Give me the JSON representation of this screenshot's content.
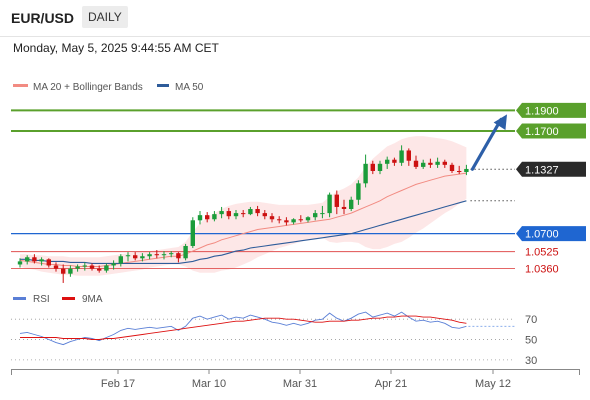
{
  "header": {
    "symbol": "EUR/USD",
    "timeframe": "DAILY",
    "datetime": "Monday, May 5, 2025 9:44:55 AM CET"
  },
  "legend_price": {
    "bb_label": "MA 20 + Bollinger Bands",
    "ma50_label": "MA 50",
    "bb_color": "#f28b82",
    "ma50_color": "#2e5c9a"
  },
  "legend_rsi": {
    "rsi_label": "RSI",
    "ma9_label": "9MA",
    "rsi_color": "#5a7fd6",
    "ma9_color": "#dd1111"
  },
  "colors": {
    "up": "#1a9c3a",
    "down": "#cc1111",
    "support": "#1f66d1",
    "resistance": "#5aa02c",
    "red_level": "#e05050"
  },
  "chart_data": {
    "type": "candlestick",
    "x_labels": [
      "Feb 17",
      "Mar 10",
      "Mar 31",
      "Apr 21",
      "May 12"
    ],
    "ylim": [
      1.02,
      1.205
    ],
    "current_price": 1.1327,
    "levels": [
      {
        "label": "1.1900",
        "value": 1.19,
        "kind": "resistance"
      },
      {
        "label": "1.1700",
        "value": 1.17,
        "kind": "resistance"
      },
      {
        "label": "1.1327",
        "value": 1.1327,
        "kind": "current"
      },
      {
        "label": "1.0700",
        "value": 1.07,
        "kind": "support"
      },
      {
        "label": "1.0525",
        "value": 1.0525,
        "kind": "red"
      },
      {
        "label": "1.0360",
        "value": 1.036,
        "kind": "red"
      }
    ],
    "candles": [
      [
        1.04,
        1.046,
        1.037,
        1.043
      ],
      [
        1.043,
        1.049,
        1.04,
        1.047
      ],
      [
        1.047,
        1.05,
        1.041,
        1.043
      ],
      [
        1.043,
        1.047,
        1.039,
        1.045
      ],
      [
        1.045,
        1.046,
        1.037,
        1.039
      ],
      [
        1.039,
        1.042,
        1.033,
        1.036
      ],
      [
        1.036,
        1.04,
        1.022,
        1.031
      ],
      [
        1.031,
        1.039,
        1.028,
        1.036
      ],
      [
        1.036,
        1.04,
        1.033,
        1.038
      ],
      [
        1.038,
        1.042,
        1.034,
        1.039
      ],
      [
        1.039,
        1.041,
        1.034,
        1.036
      ],
      [
        1.036,
        1.039,
        1.032,
        1.034
      ],
      [
        1.034,
        1.041,
        1.032,
        1.039
      ],
      [
        1.039,
        1.044,
        1.035,
        1.041
      ],
      [
        1.041,
        1.05,
        1.038,
        1.048
      ],
      [
        1.048,
        1.052,
        1.043,
        1.049
      ],
      [
        1.049,
        1.052,
        1.044,
        1.046
      ],
      [
        1.046,
        1.051,
        1.043,
        1.048
      ],
      [
        1.048,
        1.052,
        1.045,
        1.05
      ],
      [
        1.05,
        1.054,
        1.046,
        1.049
      ],
      [
        1.049,
        1.053,
        1.045,
        1.05
      ],
      [
        1.05,
        1.053,
        1.047,
        1.051
      ],
      [
        1.051,
        1.052,
        1.042,
        1.046
      ],
      [
        1.046,
        1.06,
        1.044,
        1.058
      ],
      [
        1.058,
        1.086,
        1.056,
        1.083
      ],
      [
        1.083,
        1.092,
        1.079,
        1.088
      ],
      [
        1.088,
        1.091,
        1.081,
        1.084
      ],
      [
        1.084,
        1.092,
        1.082,
        1.089
      ],
      [
        1.089,
        1.096,
        1.085,
        1.092
      ],
      [
        1.092,
        1.095,
        1.084,
        1.087
      ],
      [
        1.087,
        1.093,
        1.084,
        1.09
      ],
      [
        1.09,
        1.093,
        1.086,
        1.089
      ],
      [
        1.089,
        1.096,
        1.088,
        1.094
      ],
      [
        1.094,
        1.097,
        1.087,
        1.09
      ],
      [
        1.09,
        1.093,
        1.084,
        1.087
      ],
      [
        1.087,
        1.09,
        1.081,
        1.084
      ],
      [
        1.084,
        1.087,
        1.08,
        1.083
      ],
      [
        1.083,
        1.086,
        1.078,
        1.081
      ],
      [
        1.081,
        1.085,
        1.079,
        1.084
      ],
      [
        1.084,
        1.088,
        1.081,
        1.083
      ],
      [
        1.083,
        1.087,
        1.081,
        1.086
      ],
      [
        1.086,
        1.093,
        1.083,
        1.09
      ],
      [
        1.09,
        1.097,
        1.085,
        1.09
      ],
      [
        1.09,
        1.11,
        1.086,
        1.108
      ],
      [
        1.108,
        1.112,
        1.089,
        1.096
      ],
      [
        1.096,
        1.103,
        1.089,
        1.094
      ],
      [
        1.094,
        1.106,
        1.092,
        1.103
      ],
      [
        1.103,
        1.122,
        1.098,
        1.119
      ],
      [
        1.119,
        1.147,
        1.115,
        1.138
      ],
      [
        1.138,
        1.141,
        1.128,
        1.131
      ],
      [
        1.131,
        1.141,
        1.128,
        1.138
      ],
      [
        1.138,
        1.145,
        1.133,
        1.142
      ],
      [
        1.142,
        1.144,
        1.136,
        1.139
      ],
      [
        1.139,
        1.156,
        1.136,
        1.151
      ],
      [
        1.151,
        1.153,
        1.136,
        1.141
      ],
      [
        1.141,
        1.146,
        1.133,
        1.135
      ],
      [
        1.135,
        1.142,
        1.133,
        1.139
      ],
      [
        1.139,
        1.143,
        1.134,
        1.137
      ],
      [
        1.137,
        1.144,
        1.134,
        1.14
      ],
      [
        1.14,
        1.142,
        1.134,
        1.137
      ],
      [
        1.137,
        1.139,
        1.129,
        1.131
      ],
      [
        1.131,
        1.136,
        1.128,
        1.13
      ],
      [
        1.13,
        1.137,
        1.127,
        1.133
      ]
    ],
    "ma20": [
      1.044,
      1.043,
      1.042,
      1.041,
      1.04,
      1.04,
      1.039,
      1.039,
      1.038,
      1.038,
      1.038,
      1.038,
      1.039,
      1.04,
      1.041,
      1.042,
      1.043,
      1.044,
      1.045,
      1.046,
      1.047,
      1.048,
      1.048,
      1.05,
      1.053,
      1.056,
      1.059,
      1.061,
      1.064,
      1.066,
      1.068,
      1.07,
      1.072,
      1.074,
      1.075,
      1.076,
      1.077,
      1.078,
      1.079,
      1.08,
      1.081,
      1.082,
      1.083,
      1.084,
      1.086,
      1.088,
      1.09,
      1.093,
      1.096,
      1.099,
      1.102,
      1.106,
      1.109,
      1.112,
      1.115,
      1.118,
      1.12,
      1.122,
      1.124,
      1.126,
      1.127,
      1.128,
      1.129
    ],
    "bb_upper": [
      1.05,
      1.05,
      1.049,
      1.049,
      1.048,
      1.048,
      1.048,
      1.047,
      1.047,
      1.047,
      1.047,
      1.047,
      1.048,
      1.049,
      1.05,
      1.051,
      1.052,
      1.053,
      1.053,
      1.054,
      1.055,
      1.056,
      1.057,
      1.062,
      1.072,
      1.08,
      1.086,
      1.09,
      1.094,
      1.097,
      1.099,
      1.1,
      1.101,
      1.101,
      1.1,
      1.099,
      1.098,
      1.098,
      1.098,
      1.098,
      1.098,
      1.099,
      1.1,
      1.106,
      1.111,
      1.114,
      1.118,
      1.125,
      1.135,
      1.143,
      1.149,
      1.155,
      1.158,
      1.162,
      1.164,
      1.165,
      1.165,
      1.164,
      1.163,
      1.162,
      1.16,
      1.157,
      1.154
    ],
    "bb_lower": [
      1.038,
      1.036,
      1.035,
      1.033,
      1.032,
      1.031,
      1.03,
      1.03,
      1.029,
      1.029,
      1.029,
      1.029,
      1.03,
      1.031,
      1.032,
      1.033,
      1.034,
      1.035,
      1.037,
      1.038,
      1.039,
      1.04,
      1.04,
      1.038,
      1.034,
      1.032,
      1.032,
      1.032,
      1.034,
      1.035,
      1.037,
      1.04,
      1.043,
      1.047,
      1.05,
      1.053,
      1.056,
      1.058,
      1.06,
      1.062,
      1.064,
      1.065,
      1.066,
      1.062,
      1.061,
      1.062,
      1.062,
      1.061,
      1.057,
      1.055,
      1.055,
      1.057,
      1.06,
      1.062,
      1.066,
      1.071,
      1.075,
      1.08,
      1.085,
      1.09,
      1.094,
      1.099,
      1.104
    ],
    "ma50": [
      1.045,
      1.045,
      1.044,
      1.044,
      1.043,
      1.043,
      1.043,
      1.042,
      1.042,
      1.042,
      1.041,
      1.041,
      1.041,
      1.041,
      1.041,
      1.041,
      1.041,
      1.041,
      1.041,
      1.041,
      1.041,
      1.041,
      1.041,
      1.042,
      1.043,
      1.045,
      1.046,
      1.048,
      1.049,
      1.051,
      1.053,
      1.054,
      1.056,
      1.057,
      1.058,
      1.059,
      1.06,
      1.061,
      1.062,
      1.063,
      1.064,
      1.065,
      1.066,
      1.067,
      1.068,
      1.069,
      1.07,
      1.072,
      1.074,
      1.076,
      1.078,
      1.08,
      1.082,
      1.084,
      1.086,
      1.088,
      1.09,
      1.092,
      1.094,
      1.096,
      1.098,
      1.1,
      1.102
    ],
    "projection": {
      "from": 1.1327,
      "to": 1.19
    },
    "rsi": {
      "ylim": [
        25,
        80
      ],
      "ticks": [
        30,
        50,
        70
      ],
      "values": [
        56,
        57,
        55,
        53,
        50,
        47,
        45,
        48,
        50,
        52,
        51,
        49,
        52,
        55,
        59,
        61,
        60,
        61,
        62,
        61,
        62,
        63,
        59,
        63,
        71,
        73,
        70,
        72,
        74,
        70,
        72,
        71,
        74,
        72,
        70,
        67,
        66,
        64,
        66,
        64,
        66,
        69,
        70,
        76,
        71,
        68,
        71,
        75,
        77,
        72,
        74,
        76,
        73,
        77,
        72,
        68,
        69,
        67,
        68,
        66,
        62,
        61,
        63
      ],
      "ma9": [
        52,
        52,
        52,
        52,
        52,
        52,
        51,
        51,
        51,
        51,
        50,
        50,
        51,
        51,
        52,
        53,
        54,
        55,
        56,
        57,
        58,
        59,
        60,
        61,
        62,
        63,
        64,
        65,
        66,
        67,
        68,
        68,
        69,
        70,
        71,
        71,
        71,
        70,
        70,
        69,
        68,
        67,
        67,
        68,
        68,
        68,
        69,
        69,
        70,
        71,
        71,
        72,
        72,
        73,
        73,
        73,
        72,
        72,
        71,
        70,
        69,
        67,
        66
      ]
    }
  }
}
